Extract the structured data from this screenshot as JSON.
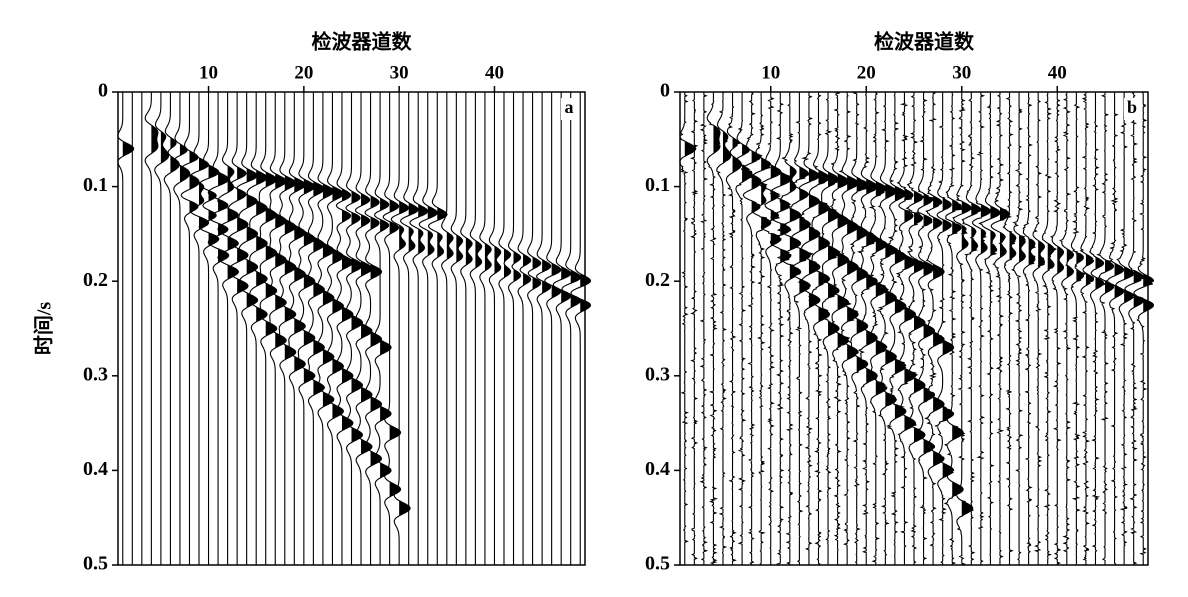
{
  "chart_data": [
    {
      "type": "wiggle",
      "title": "检波器道数",
      "ylabel": "时间/s",
      "panel_label": "a",
      "xlim": [
        0.5,
        49.5
      ],
      "xticks": [
        10,
        20,
        30,
        40
      ],
      "ylim": [
        0,
        0.5
      ],
      "yticks": [
        0,
        0.1,
        0.2,
        0.3,
        0.4,
        0.5
      ],
      "y_inverted": true,
      "traces": 49,
      "noise": false,
      "color": "#000000",
      "events": [
        {
          "x": [
            1
          ],
          "y": [
            0.06
          ]
        },
        {
          "x": [
            4,
            8,
            12,
            16,
            20,
            24,
            27
          ],
          "y": [
            0.04,
            0.07,
            0.1,
            0.13,
            0.155,
            0.18,
            0.19
          ]
        },
        {
          "x": [
            4,
            8,
            12,
            16,
            20,
            24,
            28
          ],
          "y": [
            0.05,
            0.09,
            0.13,
            0.17,
            0.2,
            0.235,
            0.27
          ]
        },
        {
          "x": [
            4,
            8,
            12,
            16,
            20,
            24,
            28,
            29
          ],
          "y": [
            0.06,
            0.1,
            0.16,
            0.21,
            0.26,
            0.3,
            0.34,
            0.36
          ]
        },
        {
          "x": [
            8,
            12,
            16,
            20,
            24,
            28,
            30
          ],
          "y": [
            0.12,
            0.19,
            0.25,
            0.3,
            0.35,
            0.4,
            0.44
          ]
        },
        {
          "x": [
            24,
            30,
            35,
            40,
            45,
            49
          ],
          "y": [
            0.13,
            0.145,
            0.155,
            0.17,
            0.185,
            0.2
          ]
        },
        {
          "x": [
            30,
            35,
            40,
            45,
            49
          ],
          "y": [
            0.16,
            0.17,
            0.185,
            0.205,
            0.225
          ]
        },
        {
          "x": [
            12,
            20,
            28,
            34
          ],
          "y": [
            0.085,
            0.1,
            0.12,
            0.13
          ]
        }
      ]
    },
    {
      "type": "wiggle",
      "title": "检波器道数",
      "panel_label": "b",
      "xlim": [
        0.5,
        49.5
      ],
      "xticks": [
        10,
        20,
        30,
        40
      ],
      "ylim": [
        0,
        0.5
      ],
      "yticks": [
        0,
        0.1,
        0.2,
        0.3,
        0.4,
        0.5
      ],
      "y_inverted": true,
      "traces": 49,
      "noise": true,
      "color": "#000000",
      "events": [
        {
          "x": [
            1
          ],
          "y": [
            0.06
          ]
        },
        {
          "x": [
            4,
            8,
            12,
            16,
            20,
            24,
            27
          ],
          "y": [
            0.04,
            0.07,
            0.1,
            0.13,
            0.155,
            0.18,
            0.19
          ]
        },
        {
          "x": [
            4,
            8,
            12,
            16,
            20,
            24,
            28
          ],
          "y": [
            0.05,
            0.09,
            0.13,
            0.17,
            0.2,
            0.235,
            0.27
          ]
        },
        {
          "x": [
            4,
            8,
            12,
            16,
            20,
            24,
            28,
            29
          ],
          "y": [
            0.06,
            0.1,
            0.16,
            0.21,
            0.26,
            0.3,
            0.34,
            0.36
          ]
        },
        {
          "x": [
            8,
            12,
            16,
            20,
            24,
            28,
            30
          ],
          "y": [
            0.12,
            0.19,
            0.25,
            0.3,
            0.35,
            0.4,
            0.44
          ]
        },
        {
          "x": [
            24,
            30,
            35,
            40,
            45,
            49
          ],
          "y": [
            0.13,
            0.145,
            0.155,
            0.17,
            0.185,
            0.2
          ]
        },
        {
          "x": [
            30,
            35,
            40,
            45,
            49
          ],
          "y": [
            0.16,
            0.17,
            0.185,
            0.205,
            0.225
          ]
        },
        {
          "x": [
            12,
            20,
            28,
            34
          ],
          "y": [
            0.085,
            0.1,
            0.12,
            0.13
          ]
        }
      ]
    }
  ]
}
